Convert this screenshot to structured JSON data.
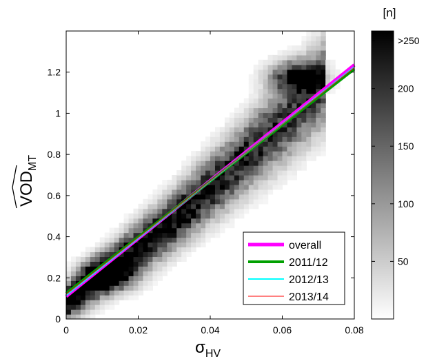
{
  "chart_data": {
    "type": "heatmap",
    "xlabel": {
      "main": "σ",
      "sub": "HV"
    },
    "ylabel": {
      "main": "VOD",
      "sub": "MT",
      "hat": true
    },
    "xlim": [
      0,
      0.08
    ],
    "ylim": [
      0,
      1.4
    ],
    "x_ticks": [
      "0",
      "0.02",
      "0.04",
      "0.06",
      "0.08"
    ],
    "y_ticks": [
      "0",
      "0.2",
      "0.4",
      "0.6",
      "0.8",
      "1",
      "1.2"
    ],
    "x_tick_values": [
      0,
      0.02,
      0.04,
      0.06,
      0.08
    ],
    "y_tick_values": [
      0,
      0.2,
      0.4,
      0.6,
      0.8,
      1.0,
      1.2
    ],
    "colorbar": {
      "title": "[n]",
      "range": [
        0,
        250
      ],
      "tick_labels": [
        "50",
        "100",
        "150",
        "200",
        ">250"
      ],
      "tick_values": [
        50,
        100,
        150,
        200,
        250
      ],
      "colormap": "gray reversed (white = low, black = high)"
    },
    "density_model": {
      "description": "approximate point-density ridges read from the plot",
      "ridges": [
        {
          "x": [
            0,
            0.03,
            0.06,
            0.072
          ],
          "y": [
            0.08,
            0.48,
            0.95,
            1.15
          ],
          "weight": 1.0
        }
      ],
      "hotspots": [
        {
          "x": 0.064,
          "y": 1.18,
          "weight": 1.0
        },
        {
          "x": 0.012,
          "y": 0.22,
          "weight": 1.0
        }
      ]
    },
    "series": [
      {
        "name": "overall",
        "type": "line",
        "x": [
          0,
          0.08
        ],
        "y": [
          0.11,
          1.235
        ],
        "color": "#ff00ff",
        "width": 5
      },
      {
        "name": "2011/12",
        "type": "line",
        "x": [
          0,
          0.08
        ],
        "y": [
          0.125,
          1.215
        ],
        "color": "#00a000",
        "width": 4
      },
      {
        "name": "2012/13",
        "type": "line",
        "x": [
          0,
          0.08
        ],
        "y": [
          0.115,
          1.225
        ],
        "color": "#00ffff",
        "width": 2
      },
      {
        "name": "2013/14",
        "type": "line",
        "x": [
          0,
          0.08
        ],
        "y": [
          0.12,
          1.222
        ],
        "color": "#ff0000",
        "width": 1
      }
    ],
    "legend": {
      "placement": "bottom-right"
    },
    "grid": false
  }
}
